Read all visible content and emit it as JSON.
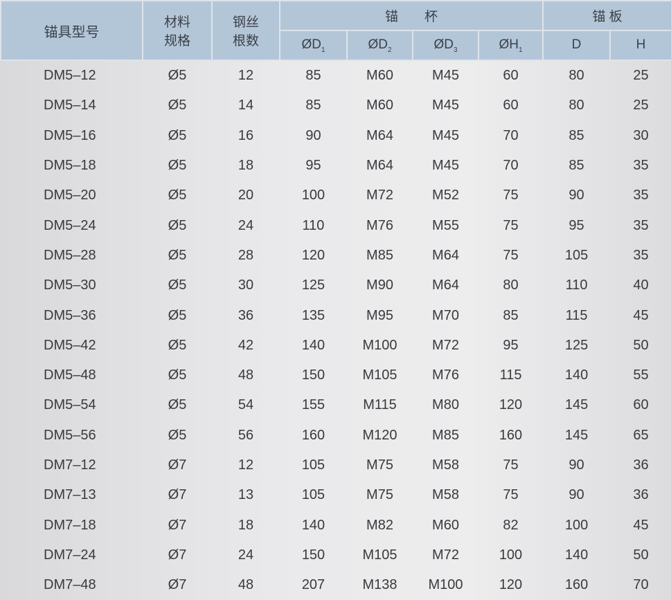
{
  "headers": {
    "model": "锚具型号",
    "material": "材料\n规格",
    "material_l1": "材料",
    "material_l2": "规格",
    "wires_l1": "钢丝",
    "wires_l2": "根数",
    "cup": "锚　　杯",
    "plate": "锚 板",
    "sub": [
      {
        "main": "ØD",
        "sub": "1"
      },
      {
        "main": "ØD",
        "sub": "2"
      },
      {
        "main": "ØD",
        "sub": "3"
      },
      {
        "main": "ØH",
        "sub": "1"
      },
      {
        "main": "D",
        "sub": ""
      },
      {
        "main": "H",
        "sub": ""
      }
    ]
  },
  "rows": [
    [
      "DM5–12",
      "Ø5",
      "12",
      "85",
      "M60",
      "M45",
      "60",
      "80",
      "25"
    ],
    [
      "DM5–14",
      "Ø5",
      "14",
      "85",
      "M60",
      "M45",
      "60",
      "80",
      "25"
    ],
    [
      "DM5–16",
      "Ø5",
      "16",
      "90",
      "M64",
      "M45",
      "70",
      "85",
      "30"
    ],
    [
      "DM5–18",
      "Ø5",
      "18",
      "95",
      "M64",
      "M45",
      "70",
      "85",
      "35"
    ],
    [
      "DM5–20",
      "Ø5",
      "20",
      "100",
      "M72",
      "M52",
      "75",
      "90",
      "35"
    ],
    [
      "DM5–24",
      "Ø5",
      "24",
      "110",
      "M76",
      "M55",
      "75",
      "95",
      "35"
    ],
    [
      "DM5–28",
      "Ø5",
      "28",
      "120",
      "M85",
      "M64",
      "75",
      "105",
      "35"
    ],
    [
      "DM5–30",
      "Ø5",
      "30",
      "125",
      "M90",
      "M64",
      "80",
      "110",
      "40"
    ],
    [
      "DM5–36",
      "Ø5",
      "36",
      "135",
      "M95",
      "M70",
      "85",
      "115",
      "45"
    ],
    [
      "DM5–42",
      "Ø5",
      "42",
      "140",
      "M100",
      "M72",
      "95",
      "125",
      "50"
    ],
    [
      "DM5–48",
      "Ø5",
      "48",
      "150",
      "M105",
      "M76",
      "115",
      "140",
      "55"
    ],
    [
      "DM5–54",
      "Ø5",
      "54",
      "155",
      "M115",
      "M80",
      "120",
      "145",
      "60"
    ],
    [
      "DM5–56",
      "Ø5",
      "56",
      "160",
      "M120",
      "M85",
      "160",
      "145",
      "65"
    ],
    [
      "DM7–12",
      "Ø7",
      "12",
      "105",
      "M75",
      "M58",
      "75",
      "90",
      "36"
    ],
    [
      "DM7–13",
      "Ø7",
      "13",
      "105",
      "M75",
      "M58",
      "75",
      "90",
      "36"
    ],
    [
      "DM7–18",
      "Ø7",
      "18",
      "140",
      "M82",
      "M60",
      "82",
      "100",
      "45"
    ],
    [
      "DM7–24",
      "Ø7",
      "24",
      "150",
      "M105",
      "M72",
      "100",
      "140",
      "50"
    ],
    [
      "DM7–48",
      "Ø7",
      "48",
      "207",
      "M138",
      "M100",
      "120",
      "160",
      "70"
    ]
  ]
}
